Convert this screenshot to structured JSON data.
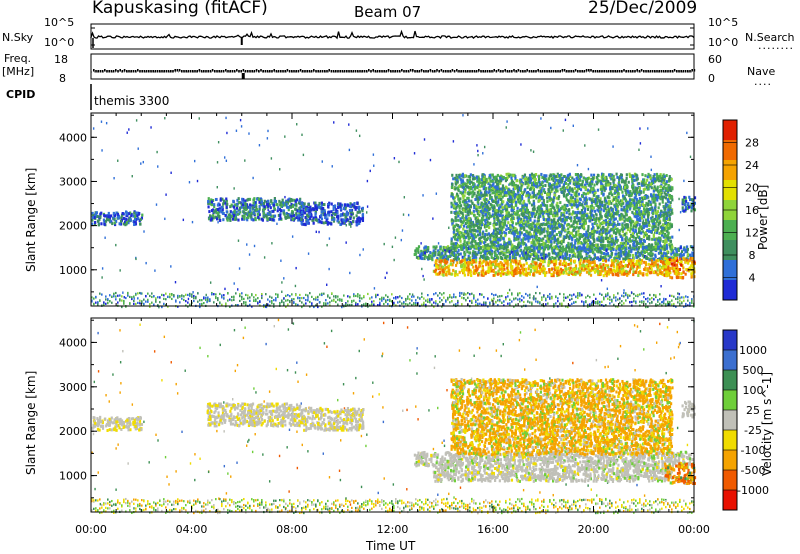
{
  "header": {
    "radar": "Kapuskasing (fitACF)",
    "beam": "Beam 07",
    "date": "25/Dec/2009"
  },
  "strips": {
    "nsky_label": "N.Sky",
    "nsearch_label": "N.Search",
    "nsearch_dots": "........",
    "noise_ticks_left": [
      "10^5",
      "10^0"
    ],
    "noise_ticks_right": [
      "10^5",
      "10^0"
    ],
    "freq_label": "Freq.",
    "freq_unit": "[MHz]",
    "freq_ticks": [
      "18",
      "8"
    ],
    "nave_label": "Nave",
    "nave_dots": "....",
    "nave_ticks": [
      "60",
      "0"
    ],
    "cpid_label": "CPID",
    "cpid_value": "themis 3300"
  },
  "chart_data": [
    {
      "type": "heatmap",
      "panel": "power",
      "ylabel": "Slant Range [km]",
      "ylim": [
        180,
        4550
      ],
      "yticks": [
        "1000",
        "2000",
        "3000",
        "4000"
      ],
      "colorbar_label": "Power [dB]",
      "colorbar_ticks": [
        "4",
        "8",
        "12",
        "16",
        "20",
        "24",
        "28"
      ],
      "colorbar_range": [
        0,
        32
      ],
      "colorscale": [
        "#1f2bd6",
        "#2f6fd8",
        "#3f8f5f",
        "#4caf50",
        "#8fd43a",
        "#e3e000",
        "#f5a300",
        "#f06a00",
        "#e02000"
      ],
      "echo_regions": [
        {
          "x": [
            0.0,
            2.0
          ],
          "y": [
            2050,
            2350
          ],
          "level": 6
        },
        {
          "x": [
            4.6,
            8.3
          ],
          "y": [
            2150,
            2650
          ],
          "level": 7
        },
        {
          "x": [
            8.3,
            10.8
          ],
          "y": [
            2050,
            2550
          ],
          "level": 4
        },
        {
          "x": [
            12.8,
            23.9
          ],
          "y": [
            1250,
            1560
          ],
          "level": 9
        },
        {
          "x": [
            13.6,
            23.0
          ],
          "y": [
            900,
            1250
          ],
          "level": 22
        },
        {
          "x": [
            14.3,
            23.1
          ],
          "y": [
            1500,
            3200
          ],
          "level": 10
        },
        {
          "x": [
            22.8,
            24.0
          ],
          "y": [
            850,
            1300
          ],
          "level": 24
        },
        {
          "x": [
            23.5,
            24.0
          ],
          "y": [
            2350,
            2700
          ],
          "level": 6
        }
      ]
    },
    {
      "type": "heatmap",
      "panel": "velocity",
      "ylabel": "Slant Range [km]",
      "xlabel": "Time UT",
      "xlim": [
        0,
        24
      ],
      "xticks": [
        "00:00",
        "04:00",
        "08:00",
        "12:00",
        "16:00",
        "20:00",
        "00:00"
      ],
      "ylim": [
        180,
        4550
      ],
      "yticks": [
        "1000",
        "2000",
        "3000",
        "4000"
      ],
      "colorbar_label": "Velocity [m s^-1]",
      "colorbar_ticks": [
        "1000",
        "500",
        "100",
        "25",
        "-25",
        "-100",
        "-500",
        "-1000"
      ],
      "colorscale": [
        "#2838c8",
        "#3b6fd0",
        "#3d8f54",
        "#6fcf3a",
        "#c0c0b8",
        "#f0dc00",
        "#f5a300",
        "#f05a00",
        "#e81000"
      ],
      "ground_scatter_color": "#c0c0b8",
      "echo_regions": [
        {
          "x": [
            0.0,
            2.0
          ],
          "y": [
            2050,
            2350
          ],
          "level": -10
        },
        {
          "x": [
            4.6,
            8.3
          ],
          "y": [
            2150,
            2650
          ],
          "level": -10
        },
        {
          "x": [
            8.3,
            10.8
          ],
          "y": [
            2050,
            2550
          ],
          "level": -10
        },
        {
          "x": [
            12.8,
            23.9
          ],
          "y": [
            1250,
            1560
          ],
          "level": 0
        },
        {
          "x": [
            13.6,
            23.0
          ],
          "y": [
            900,
            1250
          ],
          "level": 0
        },
        {
          "x": [
            14.3,
            23.1
          ],
          "y": [
            1500,
            3200
          ],
          "level": -150
        },
        {
          "x": [
            22.8,
            24.0
          ],
          "y": [
            850,
            1300
          ],
          "level": -400
        },
        {
          "x": [
            23.5,
            24.0
          ],
          "y": [
            2350,
            2700
          ],
          "level": 0
        }
      ]
    }
  ]
}
